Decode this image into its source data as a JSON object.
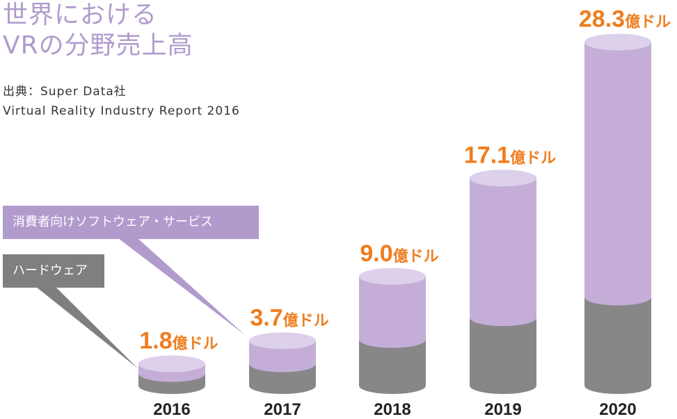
{
  "header": {
    "title_line1": "世界における",
    "title_line2": "VRの分野売上高",
    "source_line1": "出典：Super Data社",
    "source_line2": "Virtual Reality Industry Report 2016"
  },
  "legend": {
    "software": "消費者向けソフトウェア・サービス",
    "hardware": "ハードウェア"
  },
  "colors": {
    "software": "#c4aed8",
    "software_top": "#ddd0ea",
    "hardware": "#878787",
    "hardware_top": "#9a9a9a",
    "value_label": "#ee7d1e",
    "title": "#b19bcd"
  },
  "chart_data": {
    "type": "bar",
    "stacked": true,
    "categories": [
      "2016",
      "2017",
      "2018",
      "2019",
      "2020"
    ],
    "series": [
      {
        "name": "ハードウェア",
        "values": [
          1.0,
          1.8,
          3.8,
          5.6,
          7.3
        ]
      },
      {
        "name": "消費者向けソフトウェア・サービス",
        "values": [
          0.8,
          1.9,
          5.2,
          11.5,
          21.0
        ]
      }
    ],
    "totals": [
      1.8,
      3.7,
      9.0,
      17.1,
      28.3
    ],
    "total_labels": [
      "1.8",
      "3.7",
      "9.0",
      "17.1",
      "28.3"
    ],
    "unit": "億ドル",
    "ylim": [
      0,
      30
    ]
  }
}
